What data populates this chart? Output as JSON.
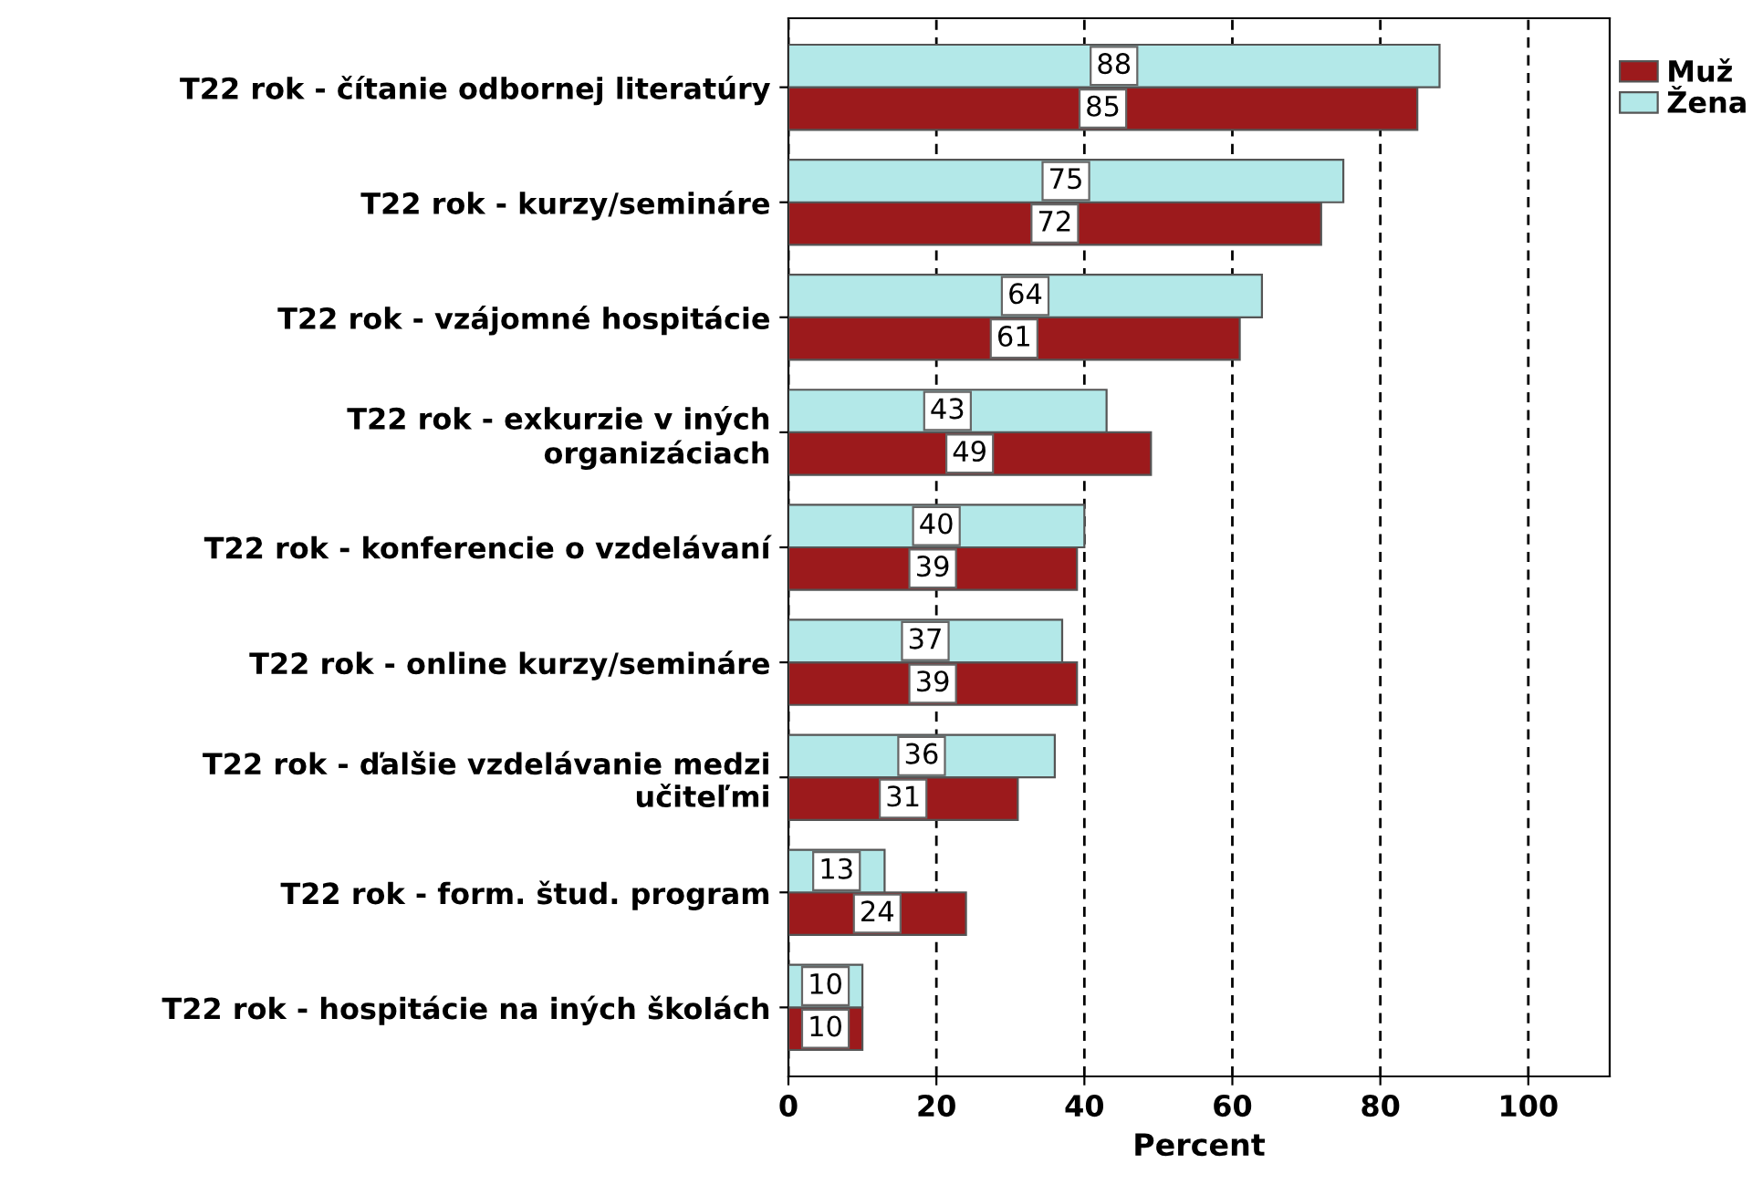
{
  "chart_data": {
    "type": "bar",
    "orientation": "horizontal",
    "xlabel": "Percent",
    "categories": [
      "T22 rok - čítanie odbornej literatúry",
      "T22 rok - kurzy/semináre",
      "T22 rok - vzájomné hospitácie",
      "T22 rok - exkurzie v iných organizáciach",
      "T22 rok - konferencie o vzdelávaní",
      "T22 rok - online kurzy/semináre",
      "T22 rok - ďalšie vzdelávanie medzi učiteľmi",
      "T22 rok - form. štud. program",
      "T22 rok - hospitácie na iných školách"
    ],
    "series": [
      {
        "name": "Muž",
        "color": "#9c1a1c",
        "values": [
          85,
          72,
          61,
          49,
          39,
          39,
          31,
          24,
          10
        ]
      },
      {
        "name": "Žena",
        "color": "#b3e8e8",
        "values": [
          88,
          75,
          64,
          43,
          40,
          37,
          36,
          13,
          10
        ]
      }
    ],
    "xlim": [
      0,
      111
    ],
    "xticks": [
      0,
      20,
      40,
      60,
      80,
      100
    ],
    "grid": "x",
    "legend": "top right",
    "data_labels": true
  }
}
